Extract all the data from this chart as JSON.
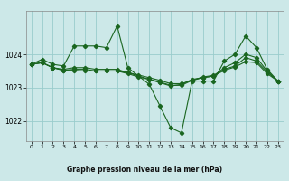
{
  "bg_color": "#cce8e8",
  "grid_color": "#99cccc",
  "line_color": "#1a6620",
  "xlabel": "Graphe pression niveau de la mer (hPa)",
  "xlim": [
    -0.5,
    23.5
  ],
  "ylim": [
    1021.4,
    1025.3
  ],
  "yticks": [
    1022,
    1023,
    1024
  ],
  "xticks": [
    0,
    1,
    2,
    3,
    4,
    5,
    6,
    7,
    8,
    9,
    10,
    11,
    12,
    13,
    14,
    15,
    16,
    17,
    18,
    19,
    20,
    21,
    22,
    23
  ],
  "series": [
    [
      1023.7,
      1023.85,
      1023.7,
      1023.65,
      1024.25,
      1024.25,
      1024.25,
      1024.2,
      1024.85,
      1023.6,
      1023.35,
      1023.1,
      1022.45,
      1021.8,
      1021.65,
      1023.2,
      1023.2,
      1023.2,
      1023.8,
      1024.0,
      1024.55,
      1024.2,
      1023.55,
      1023.2
    ],
    [
      1023.7,
      1023.75,
      1023.6,
      1023.55,
      1023.6,
      1023.6,
      1023.55,
      1023.55,
      1023.55,
      1023.45,
      1023.35,
      1023.25,
      1023.15,
      1023.05,
      1023.1,
      1023.25,
      1023.3,
      1023.35,
      1023.6,
      1023.75,
      1024.0,
      1023.9,
      1023.5,
      1023.2
    ],
    [
      1023.7,
      1023.75,
      1023.6,
      1023.52,
      1023.52,
      1023.5,
      1023.5,
      1023.5,
      1023.5,
      1023.45,
      1023.38,
      1023.3,
      1023.22,
      1023.12,
      1023.12,
      1023.22,
      1023.3,
      1023.35,
      1023.52,
      1023.62,
      1023.78,
      1023.75,
      1023.42,
      1023.2
    ],
    [
      1023.7,
      1023.75,
      1023.6,
      1023.52,
      1023.55,
      1023.55,
      1023.5,
      1023.5,
      1023.5,
      1023.42,
      1023.32,
      1023.25,
      1023.17,
      1023.07,
      1023.07,
      1023.22,
      1023.32,
      1023.37,
      1023.55,
      1023.65,
      1023.9,
      1023.8,
      1023.47,
      1023.2
    ]
  ]
}
